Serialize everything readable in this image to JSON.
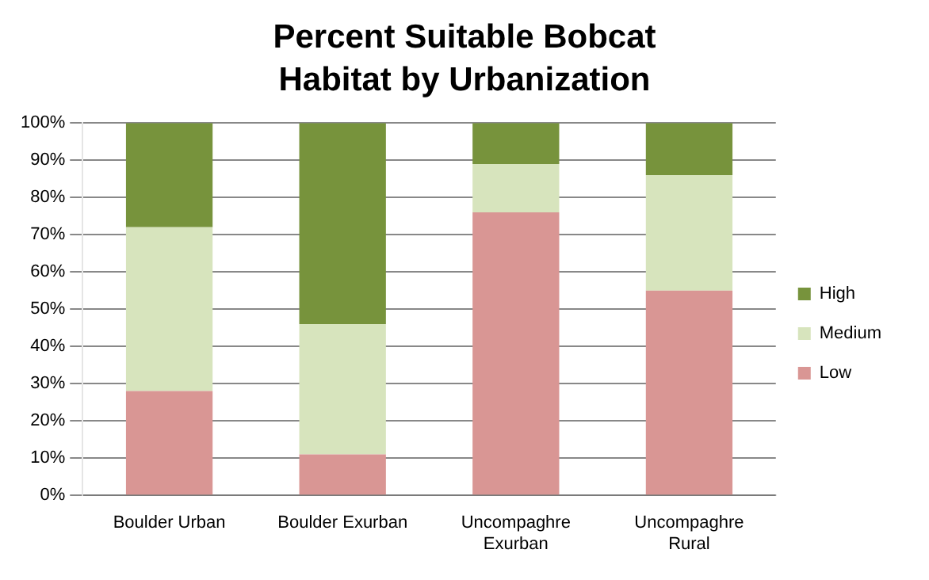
{
  "chart_data": {
    "type": "bar",
    "title": "Percent Suitable Bobcat Habitat by Urbanization",
    "stacked": true,
    "categories": [
      "Boulder Urban",
      "Boulder Exurban",
      "Uncompaghre Exurban",
      "Uncompaghre Rural"
    ],
    "series": [
      {
        "name": "Low",
        "color": "#d99694",
        "values": [
          28,
          11,
          76,
          55
        ]
      },
      {
        "name": "Medium",
        "color": "#d7e4bd",
        "values": [
          44,
          35,
          13,
          31
        ]
      },
      {
        "name": "High",
        "color": "#77933c",
        "values": [
          28,
          54,
          11,
          14
        ]
      }
    ],
    "ylim": [
      0,
      100
    ],
    "yticks": [
      {
        "value": 0,
        "label": "0%"
      },
      {
        "value": 10,
        "label": "10%"
      },
      {
        "value": 20,
        "label": "20%"
      },
      {
        "value": 30,
        "label": "30%"
      },
      {
        "value": 40,
        "label": "40%"
      },
      {
        "value": 50,
        "label": "50%"
      },
      {
        "value": 60,
        "label": "60%"
      },
      {
        "value": 70,
        "label": "70%"
      },
      {
        "value": 80,
        "label": "80%"
      },
      {
        "value": 90,
        "label": "90%"
      },
      {
        "value": 100,
        "label": "100%"
      }
    ],
    "grid": "y",
    "legend": "right"
  }
}
